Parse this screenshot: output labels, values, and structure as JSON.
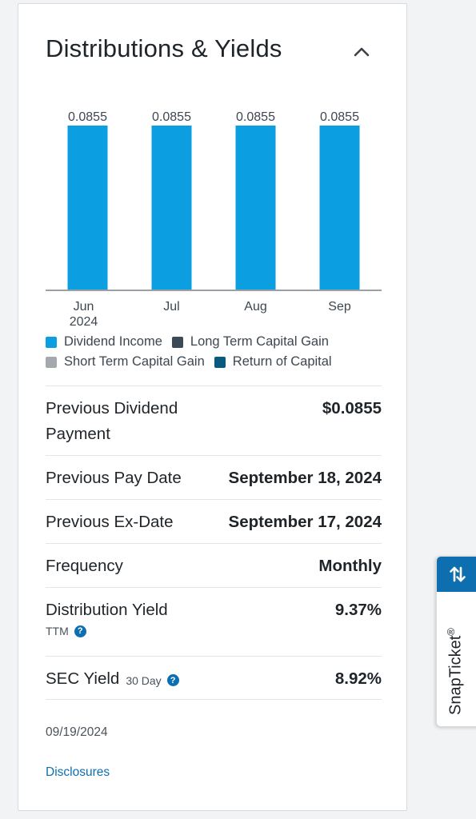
{
  "card": {
    "title": "Distributions & Yields"
  },
  "chart_data": {
    "type": "bar",
    "categories": [
      "Jun\n2024",
      "Jul",
      "Aug",
      "Sep"
    ],
    "tick_lines": [
      [
        "Jun",
        "2024"
      ],
      [
        "Jul"
      ],
      [
        "Aug"
      ],
      [
        "Sep"
      ]
    ],
    "series": [
      {
        "name": "Dividend Income",
        "values": [
          0.0855,
          0.0855,
          0.0855,
          0.0855
        ],
        "color": "#0b9ee0"
      }
    ],
    "data_labels": [
      "0.0855",
      "0.0855",
      "0.0855",
      "0.0855"
    ],
    "ylim": [
      0,
      0.0855
    ],
    "grid": false,
    "legend_placement": "bottom"
  },
  "legend": [
    {
      "label": "Dividend Income",
      "color": "#0b9ee0"
    },
    {
      "label": "Long Term Capital Gain",
      "color": "#3c4a56"
    },
    {
      "label": "Short Term Capital Gain",
      "color": "#a3a9ae"
    },
    {
      "label": "Return of Capital",
      "color": "#0a5a80"
    }
  ],
  "rows": {
    "prev_dividend": {
      "label": "Previous Dividend Payment",
      "value": "$0.0855"
    },
    "prev_pay_date": {
      "label": "Previous Pay Date",
      "value": "September 18, 2024"
    },
    "prev_ex_date": {
      "label": "Previous Ex-Date",
      "value": "September 17, 2024"
    },
    "frequency": {
      "label": "Frequency",
      "value": "Monthly"
    },
    "dist_yield": {
      "label": "Distribution Yield",
      "sub": "TTM",
      "value": "9.37%"
    },
    "sec_yield": {
      "label": "SEC Yield",
      "sub": "30 Day",
      "value": "8.92%"
    }
  },
  "as_of_date": "09/19/2024",
  "disclosures_link": "Disclosures",
  "snapticket": {
    "label": "SnapTicket",
    "mark": "®",
    "icon": "swap-vertical-icon"
  }
}
